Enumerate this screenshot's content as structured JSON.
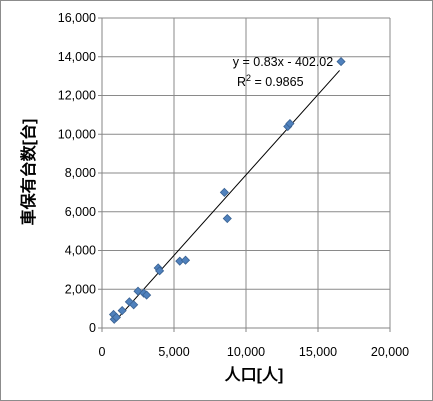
{
  "chart_data": {
    "type": "scatter",
    "xlabel": "人口[人]",
    "ylabel": "車保有台数[台]",
    "xlim": [
      0,
      20000
    ],
    "ylim": [
      0,
      16000
    ],
    "x_ticks": [
      "0",
      "5,000",
      "10,000",
      "15,000",
      "20,000"
    ],
    "y_ticks": [
      "0",
      "2,000",
      "4,000",
      "6,000",
      "8,000",
      "10,000",
      "12,000",
      "14,000",
      "16,000"
    ],
    "grid": true,
    "legend": "none",
    "marker_color": "#4f81bd",
    "trendline": {
      "slope": 0.83,
      "intercept": -402.02,
      "x_range": [
        800,
        16500
      ],
      "equation": "y = 0.83x - 402.02",
      "r2_label": "R",
      "r2_sup": "2",
      "r2_value": " = 0.9865"
    },
    "points": [
      {
        "x": 800,
        "y": 700
      },
      {
        "x": 850,
        "y": 450
      },
      {
        "x": 1000,
        "y": 550
      },
      {
        "x": 1400,
        "y": 900
      },
      {
        "x": 1900,
        "y": 1350
      },
      {
        "x": 2200,
        "y": 1200
      },
      {
        "x": 2500,
        "y": 1900
      },
      {
        "x": 2900,
        "y": 1800
      },
      {
        "x": 3100,
        "y": 1700
      },
      {
        "x": 3900,
        "y": 3100
      },
      {
        "x": 4000,
        "y": 2950
      },
      {
        "x": 5400,
        "y": 3450
      },
      {
        "x": 5800,
        "y": 3500
      },
      {
        "x": 8500,
        "y": 7000
      },
      {
        "x": 8700,
        "y": 5650
      },
      {
        "x": 12900,
        "y": 10400
      },
      {
        "x": 13050,
        "y": 10550
      },
      {
        "x": 16600,
        "y": 13750
      }
    ]
  }
}
